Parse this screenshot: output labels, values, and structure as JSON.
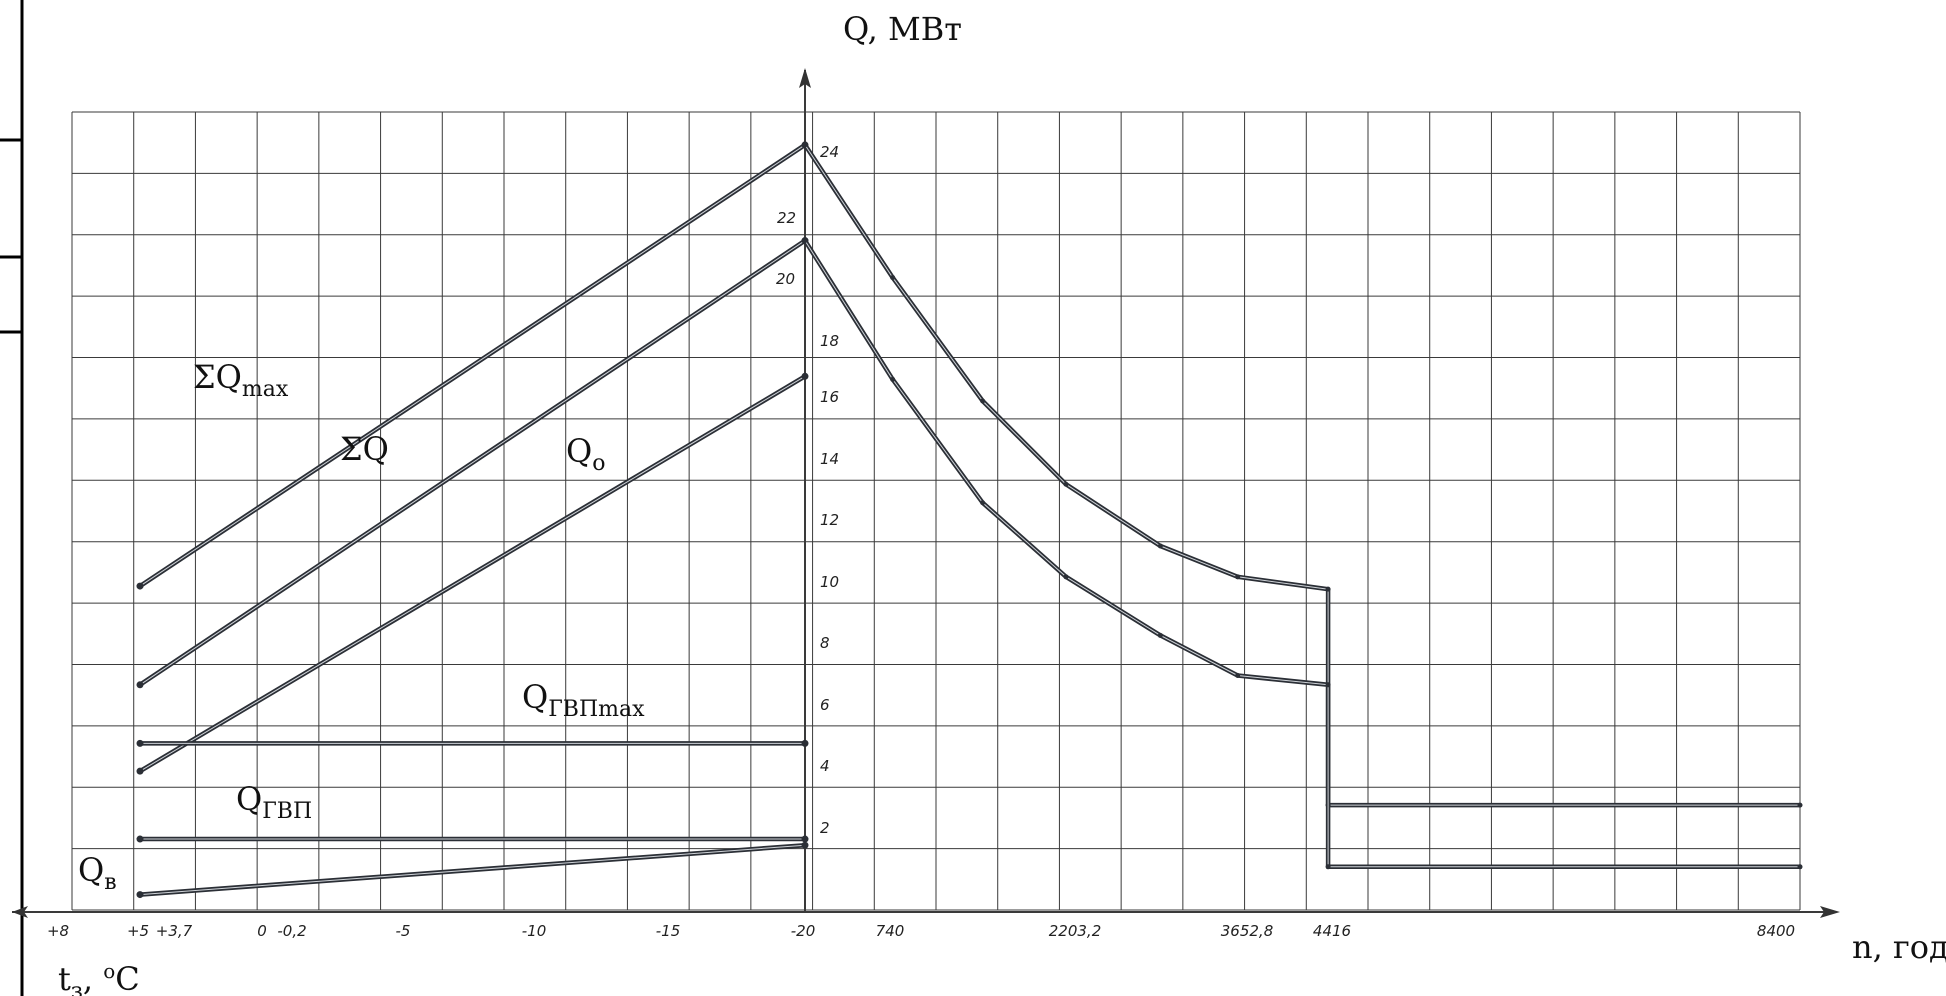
{
  "chart_data": {
    "type": "line",
    "title": "",
    "y_axis": {
      "label": "Q, МВт",
      "range": [
        0,
        25
      ],
      "ticks": [
        "2",
        "4",
        "6",
        "8",
        "10",
        "12",
        "14",
        "16",
        "18",
        "20",
        "22",
        "24"
      ]
    },
    "left_axis": {
      "label_main": "t",
      "label_sub": "з",
      "label_tail": ", ",
      "label_sup": "o",
      "label_unit": "C",
      "ticks": [
        {
          "label": "+8",
          "t": 8
        },
        {
          "label": "+5",
          "t": 5
        },
        {
          "label": "+3,7",
          "t": 3.7
        },
        {
          "label": "0",
          "t": 0
        },
        {
          "label": "-0,2",
          "t": -0.2
        },
        {
          "label": "-5",
          "t": -5
        },
        {
          "label": "-10",
          "t": -10
        },
        {
          "label": "-15",
          "t": -15
        },
        {
          "label": "-20",
          "t": -20
        }
      ]
    },
    "right_axis": {
      "label": "n, год",
      "ticks": [
        {
          "label": "740",
          "n": 740
        },
        {
          "label": "2203,2",
          "n": 2203.2
        },
        {
          "label": "3652,8",
          "n": 3652.8
        },
        {
          "label": "4416",
          "n": 4416
        },
        {
          "label": "8400",
          "n": 8400
        }
      ]
    },
    "left_series": [
      {
        "name": "ΣQmax",
        "main": "ΣQ",
        "sub": "max",
        "points": [
          [
            8,
            10.5
          ],
          [
            -20,
            24.8
          ]
        ]
      },
      {
        "name": "ΣQ",
        "main": "ΣQ",
        "sub": "",
        "points": [
          [
            8,
            7.3
          ],
          [
            -20,
            21.7
          ]
        ]
      },
      {
        "name": "Qo",
        "main": "Q",
        "sub": "o",
        "points": [
          [
            8,
            4.5
          ],
          [
            -20,
            17.3
          ]
        ]
      },
      {
        "name": "QГВПmax",
        "main": "Q",
        "sub": "ГВПmax",
        "points": [
          [
            8,
            5.4
          ],
          [
            -20,
            5.4
          ]
        ]
      },
      {
        "name": "QГВП",
        "main": "Q",
        "sub": "ГВП",
        "points": [
          [
            8,
            2.3
          ],
          [
            -20,
            2.3
          ]
        ]
      },
      {
        "name": "Qв",
        "main": "Q",
        "sub": "в",
        "points": [
          [
            8,
            0.5
          ],
          [
            -20,
            2.1
          ]
        ]
      }
    ],
    "right_series": [
      {
        "points": [
          [
            0,
            24.8
          ],
          [
            740,
            20.5
          ],
          [
            1500,
            16.5
          ],
          [
            2203.2,
            13.8
          ],
          [
            3000,
            11.8
          ],
          [
            3652.8,
            10.8
          ],
          [
            4416,
            10.4
          ],
          [
            4416,
            3.4
          ],
          [
            8400,
            3.4
          ]
        ]
      },
      {
        "points": [
          [
            0,
            21.7
          ],
          [
            740,
            17.2
          ],
          [
            1500,
            13.2
          ],
          [
            2203.2,
            10.8
          ],
          [
            3000,
            8.9
          ],
          [
            3652.8,
            7.6
          ],
          [
            4416,
            7.3
          ],
          [
            4416,
            1.4
          ],
          [
            8400,
            1.4
          ]
        ]
      }
    ],
    "grid": true
  }
}
